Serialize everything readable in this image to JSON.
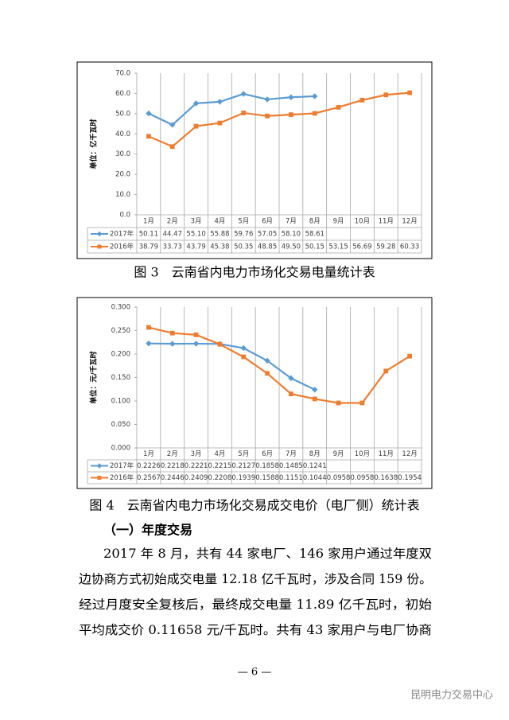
{
  "chart_data": [
    {
      "type": "line",
      "y_label": "单位：亿千瓦时",
      "categories": [
        "1月",
        "2月",
        "3月",
        "4月",
        "5月",
        "6月",
        "7月",
        "8月",
        "9月",
        "10月",
        "11月",
        "12月"
      ],
      "series": [
        {
          "name": "2017年",
          "color": "#5b9bd5",
          "marker": "diamond",
          "values": [
            50.11,
            44.47,
            55.1,
            55.88,
            59.76,
            57.05,
            58.1,
            58.61,
            null,
            null,
            null,
            null
          ],
          "value_labels": [
            "50.11",
            "44.47",
            "55.10",
            "55.88",
            "59.76",
            "57.05",
            "58.10",
            "58.61",
            null,
            null,
            null,
            null
          ]
        },
        {
          "name": "2016年",
          "color": "#ed7d31",
          "marker": "square",
          "values": [
            38.79,
            33.73,
            43.79,
            45.38,
            50.35,
            48.85,
            49.5,
            50.15,
            53.15,
            56.69,
            59.28,
            60.33
          ],
          "value_labels": [
            "38.79",
            "33.73",
            "43.79",
            "45.38",
            "50.35",
            "48.85",
            "49.50",
            "50.15",
            "53.15",
            "56.69",
            "59.28",
            "60.33"
          ]
        }
      ],
      "ylim": [
        0,
        70
      ],
      "yticks": [
        {
          "value": 0,
          "label": "0.0"
        },
        {
          "value": 10,
          "label": "10.0"
        },
        {
          "value": 20,
          "label": "20.0"
        },
        {
          "value": 30,
          "label": "30.0"
        },
        {
          "value": 40,
          "label": "40.0"
        },
        {
          "value": 50,
          "label": "50.0"
        },
        {
          "value": 60,
          "label": "60.0"
        },
        {
          "value": 70,
          "label": "70.0"
        }
      ]
    },
    {
      "type": "line",
      "y_label": "单位：元/千瓦时",
      "categories": [
        "1月",
        "2月",
        "3月",
        "4月",
        "5月",
        "6月",
        "7月",
        "8月",
        "9月",
        "10月",
        "11月",
        "12月"
      ],
      "series": [
        {
          "name": "2017年",
          "color": "#5b9bd5",
          "marker": "diamond",
          "values": [
            0.2226,
            0.2218,
            0.2221,
            0.2215,
            0.2127,
            0.1858,
            0.1485,
            0.1241,
            null,
            null,
            null,
            null
          ]
        },
        {
          "name": "2016年",
          "color": "#ed7d31",
          "marker": "square",
          "values": [
            0.2567,
            0.2446,
            0.2409,
            0.2208,
            0.1939,
            0.1588,
            0.1151,
            0.1044,
            0.0958,
            0.0958,
            0.1638,
            0.1954
          ]
        }
      ],
      "ylim": [
        0,
        0.3
      ],
      "yticks": [
        {
          "value": 0,
          "label": "0.000"
        },
        {
          "value": 0.05,
          "label": "0.050"
        },
        {
          "value": 0.1,
          "label": "0.100"
        },
        {
          "value": 0.15,
          "label": "0.150"
        },
        {
          "value": 0.2,
          "label": "0.200"
        },
        {
          "value": 0.25,
          "label": "0.250"
        },
        {
          "value": 0.3,
          "label": "0.300"
        }
      ]
    }
  ],
  "captions": [
    "图 3　云南省内电力市场化交易电量统计表",
    "图 4　云南省内电力市场化交易成交电价（电厂侧）统计表"
  ],
  "section_heading": "（一）年度交易",
  "paragraph_lines": [
    "2017 年 8 月，共有 44 家电厂、146 家用户通过年度双",
    "边协商方式初始成交电量 12.18 亿千瓦时，涉及合同 159 份。",
    "经过月度安全复核后，最终成交电量 11.89 亿千瓦时，初始",
    "平均成交价 0.11658 元/千瓦时。共有 43 家用户与电厂协商"
  ],
  "page_number": "— 6 —",
  "watermark": "昆明电力交易中心"
}
